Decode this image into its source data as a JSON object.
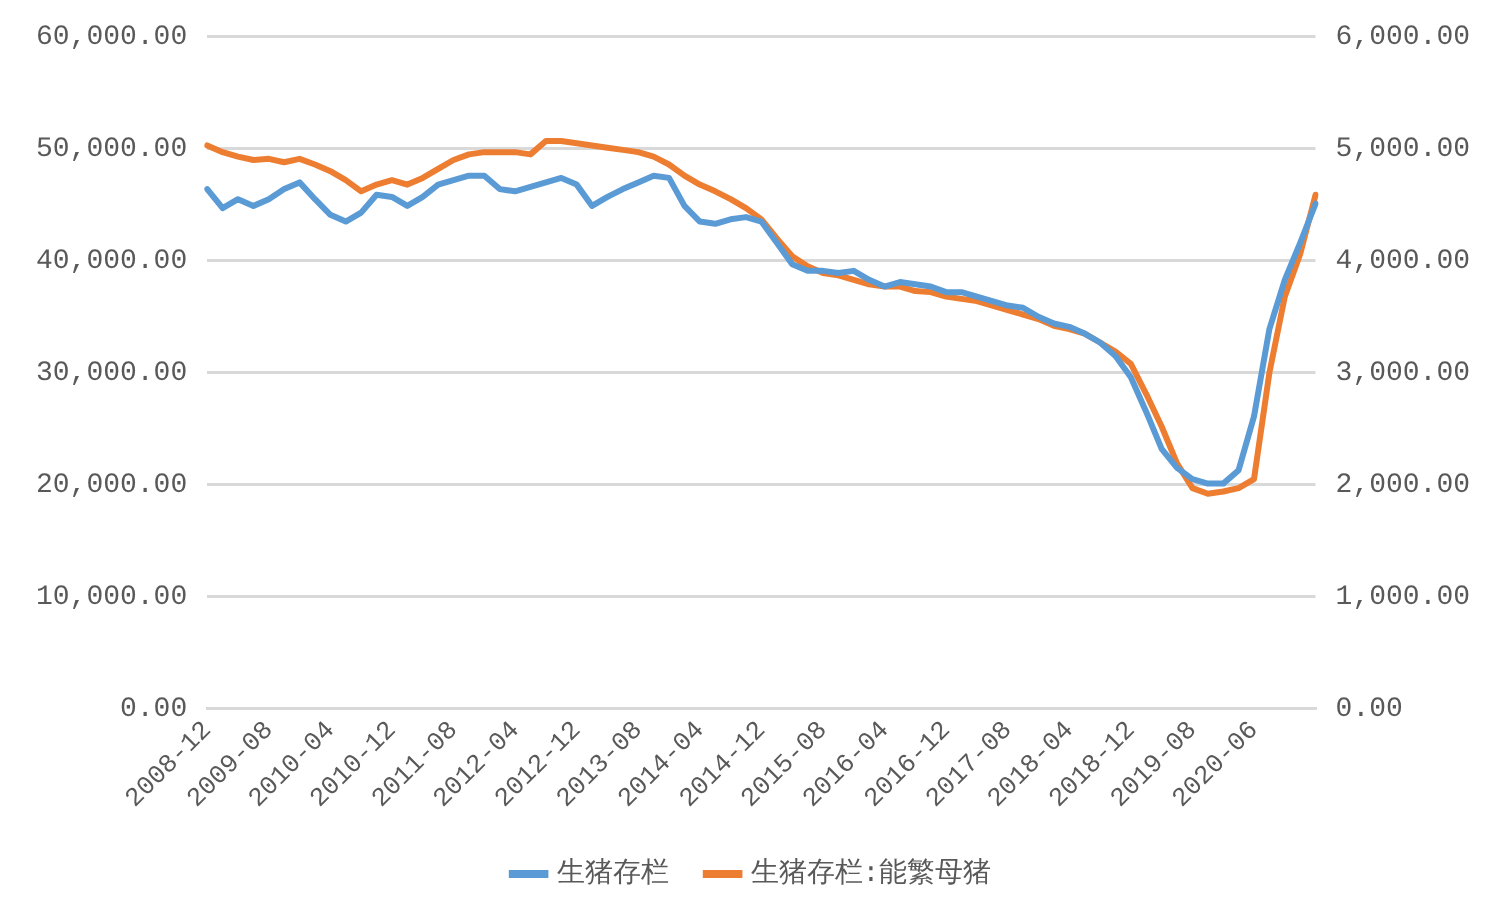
{
  "chart_data": {
    "type": "line",
    "categories": [
      "2008-12",
      null,
      null,
      null,
      "2009-08",
      null,
      null,
      null,
      "2010-04",
      null,
      null,
      null,
      "2010-12",
      null,
      null,
      null,
      "2011-08",
      null,
      null,
      null,
      "2012-04",
      null,
      null,
      null,
      "2012-12",
      null,
      null,
      null,
      "2013-08",
      null,
      null,
      null,
      "2014-04",
      null,
      null,
      null,
      "2014-12",
      null,
      null,
      null,
      "2015-08",
      null,
      null,
      null,
      "2016-04",
      null,
      null,
      null,
      "2016-12",
      null,
      null,
      null,
      "2017-08",
      null,
      null,
      null,
      "2018-04",
      null,
      null,
      null,
      "2018-12",
      null,
      null,
      null,
      "2019-08",
      null,
      null,
      null,
      "2020-06",
      null,
      null,
      null,
      null
    ],
    "series": [
      {
        "name": "生猪存栏",
        "color": "#5b9bd5",
        "axis": "y",
        "values": [
          46400,
          44700,
          45500,
          44900,
          45500,
          46400,
          47000,
          45500,
          44100,
          43500,
          44300,
          45900,
          45700,
          44900,
          45700,
          46800,
          47200,
          47600,
          47600,
          46400,
          46200,
          46600,
          47000,
          47400,
          46800,
          44900,
          45700,
          46400,
          47000,
          47600,
          47400,
          44900,
          43500,
          43300,
          43700,
          43900,
          43500,
          41600,
          39700,
          39100,
          39100,
          38900,
          39100,
          38300,
          37700,
          38100,
          37900,
          37700,
          37200,
          37200,
          36800,
          36400,
          36000,
          35800,
          35000,
          34400,
          34100,
          33500,
          32700,
          31500,
          29600,
          26500,
          23200,
          21500,
          20500,
          20100,
          20100,
          21300,
          26100,
          33900,
          38300,
          41600,
          45100
        ]
      },
      {
        "name": "生猪存栏:能繁母猪",
        "color": "#ed7d31",
        "axis": "y2",
        "values": [
          5030,
          4970,
          4930,
          4900,
          4910,
          4880,
          4910,
          4860,
          4800,
          4720,
          4620,
          4680,
          4720,
          4680,
          4740,
          4820,
          4900,
          4950,
          4970,
          4970,
          4970,
          4950,
          5070,
          5070,
          5050,
          5030,
          5010,
          4990,
          4970,
          4930,
          4860,
          4760,
          4680,
          4620,
          4550,
          4470,
          4370,
          4200,
          4040,
          3950,
          3890,
          3870,
          3830,
          3790,
          3770,
          3770,
          3730,
          3720,
          3680,
          3660,
          3640,
          3600,
          3560,
          3520,
          3480,
          3420,
          3390,
          3350,
          3270,
          3190,
          3080,
          2810,
          2520,
          2190,
          1970,
          1920,
          1940,
          1970,
          2050,
          3000,
          3680,
          4060,
          4590
        ]
      }
    ],
    "ylim": [
      0,
      60000
    ],
    "yticks": [
      {
        "value": 0,
        "label": "0.00"
      },
      {
        "value": 10000,
        "label": "10,000.00"
      },
      {
        "value": 20000,
        "label": "20,000.00"
      },
      {
        "value": 30000,
        "label": "30,000.00"
      },
      {
        "value": 40000,
        "label": "40,000.00"
      },
      {
        "value": 50000,
        "label": "50,000.00"
      },
      {
        "value": 60000,
        "label": "60,000.00"
      }
    ],
    "y2lim": [
      0,
      6000
    ],
    "y2ticks": [
      {
        "value": 0,
        "label": "0.00"
      },
      {
        "value": 1000,
        "label": "1,000.00"
      },
      {
        "value": 2000,
        "label": "2,000.00"
      },
      {
        "value": 3000,
        "label": "3,000.00"
      },
      {
        "value": 4000,
        "label": "4,000.00"
      },
      {
        "value": 5000,
        "label": "5,000.00"
      },
      {
        "value": 6000,
        "label": "6,000.00"
      }
    ],
    "grid": "y",
    "legend": "bottom",
    "line_style": "solid"
  }
}
